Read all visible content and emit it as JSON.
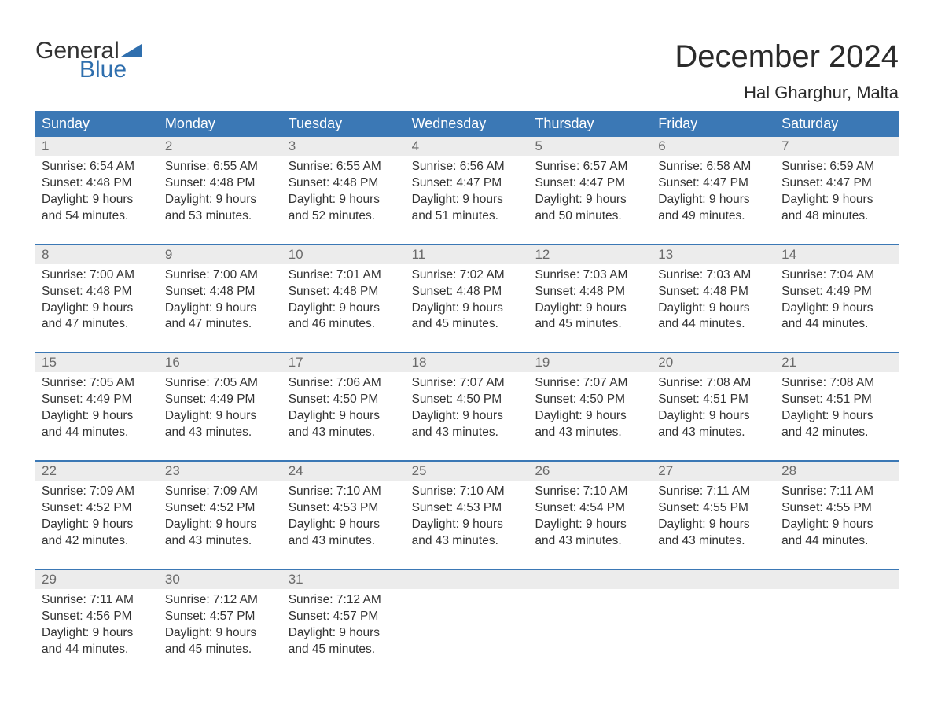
{
  "logo": {
    "text_general": "General",
    "text_blue": "Blue",
    "flag_color": "#2f6fae"
  },
  "title": "December 2024",
  "location": "Hal Gharghur, Malta",
  "colors": {
    "header_bg": "#3b78b5",
    "header_text": "#ffffff",
    "daynum_bg": "#ececec",
    "daynum_text": "#6a6a6a",
    "body_text": "#333333",
    "week_border": "#3b78b5",
    "logo_blue": "#2f6fae",
    "logo_gray": "#333333",
    "page_bg": "#ffffff"
  },
  "typography": {
    "title_fontsize": 40,
    "location_fontsize": 22,
    "dayhead_fontsize": 18,
    "daynum_fontsize": 17,
    "body_fontsize": 15.5,
    "font_family": "Arial"
  },
  "calendar": {
    "type": "table",
    "columns": [
      "Sunday",
      "Monday",
      "Tuesday",
      "Wednesday",
      "Thursday",
      "Friday",
      "Saturday"
    ],
    "weeks": [
      [
        {
          "day": "1",
          "sunrise": "6:54 AM",
          "sunset": "4:48 PM",
          "daylight_line1": "Daylight: 9 hours",
          "daylight_line2": "and 54 minutes."
        },
        {
          "day": "2",
          "sunrise": "6:55 AM",
          "sunset": "4:48 PM",
          "daylight_line1": "Daylight: 9 hours",
          "daylight_line2": "and 53 minutes."
        },
        {
          "day": "3",
          "sunrise": "6:55 AM",
          "sunset": "4:48 PM",
          "daylight_line1": "Daylight: 9 hours",
          "daylight_line2": "and 52 minutes."
        },
        {
          "day": "4",
          "sunrise": "6:56 AM",
          "sunset": "4:47 PM",
          "daylight_line1": "Daylight: 9 hours",
          "daylight_line2": "and 51 minutes."
        },
        {
          "day": "5",
          "sunrise": "6:57 AM",
          "sunset": "4:47 PM",
          "daylight_line1": "Daylight: 9 hours",
          "daylight_line2": "and 50 minutes."
        },
        {
          "day": "6",
          "sunrise": "6:58 AM",
          "sunset": "4:47 PM",
          "daylight_line1": "Daylight: 9 hours",
          "daylight_line2": "and 49 minutes."
        },
        {
          "day": "7",
          "sunrise": "6:59 AM",
          "sunset": "4:47 PM",
          "daylight_line1": "Daylight: 9 hours",
          "daylight_line2": "and 48 minutes."
        }
      ],
      [
        {
          "day": "8",
          "sunrise": "7:00 AM",
          "sunset": "4:48 PM",
          "daylight_line1": "Daylight: 9 hours",
          "daylight_line2": "and 47 minutes."
        },
        {
          "day": "9",
          "sunrise": "7:00 AM",
          "sunset": "4:48 PM",
          "daylight_line1": "Daylight: 9 hours",
          "daylight_line2": "and 47 minutes."
        },
        {
          "day": "10",
          "sunrise": "7:01 AM",
          "sunset": "4:48 PM",
          "daylight_line1": "Daylight: 9 hours",
          "daylight_line2": "and 46 minutes."
        },
        {
          "day": "11",
          "sunrise": "7:02 AM",
          "sunset": "4:48 PM",
          "daylight_line1": "Daylight: 9 hours",
          "daylight_line2": "and 45 minutes."
        },
        {
          "day": "12",
          "sunrise": "7:03 AM",
          "sunset": "4:48 PM",
          "daylight_line1": "Daylight: 9 hours",
          "daylight_line2": "and 45 minutes."
        },
        {
          "day": "13",
          "sunrise": "7:03 AM",
          "sunset": "4:48 PM",
          "daylight_line1": "Daylight: 9 hours",
          "daylight_line2": "and 44 minutes."
        },
        {
          "day": "14",
          "sunrise": "7:04 AM",
          "sunset": "4:49 PM",
          "daylight_line1": "Daylight: 9 hours",
          "daylight_line2": "and 44 minutes."
        }
      ],
      [
        {
          "day": "15",
          "sunrise": "7:05 AM",
          "sunset": "4:49 PM",
          "daylight_line1": "Daylight: 9 hours",
          "daylight_line2": "and 44 minutes."
        },
        {
          "day": "16",
          "sunrise": "7:05 AM",
          "sunset": "4:49 PM",
          "daylight_line1": "Daylight: 9 hours",
          "daylight_line2": "and 43 minutes."
        },
        {
          "day": "17",
          "sunrise": "7:06 AM",
          "sunset": "4:50 PM",
          "daylight_line1": "Daylight: 9 hours",
          "daylight_line2": "and 43 minutes."
        },
        {
          "day": "18",
          "sunrise": "7:07 AM",
          "sunset": "4:50 PM",
          "daylight_line1": "Daylight: 9 hours",
          "daylight_line2": "and 43 minutes."
        },
        {
          "day": "19",
          "sunrise": "7:07 AM",
          "sunset": "4:50 PM",
          "daylight_line1": "Daylight: 9 hours",
          "daylight_line2": "and 43 minutes."
        },
        {
          "day": "20",
          "sunrise": "7:08 AM",
          "sunset": "4:51 PM",
          "daylight_line1": "Daylight: 9 hours",
          "daylight_line2": "and 43 minutes."
        },
        {
          "day": "21",
          "sunrise": "7:08 AM",
          "sunset": "4:51 PM",
          "daylight_line1": "Daylight: 9 hours",
          "daylight_line2": "and 42 minutes."
        }
      ],
      [
        {
          "day": "22",
          "sunrise": "7:09 AM",
          "sunset": "4:52 PM",
          "daylight_line1": "Daylight: 9 hours",
          "daylight_line2": "and 42 minutes."
        },
        {
          "day": "23",
          "sunrise": "7:09 AM",
          "sunset": "4:52 PM",
          "daylight_line1": "Daylight: 9 hours",
          "daylight_line2": "and 43 minutes."
        },
        {
          "day": "24",
          "sunrise": "7:10 AM",
          "sunset": "4:53 PM",
          "daylight_line1": "Daylight: 9 hours",
          "daylight_line2": "and 43 minutes."
        },
        {
          "day": "25",
          "sunrise": "7:10 AM",
          "sunset": "4:53 PM",
          "daylight_line1": "Daylight: 9 hours",
          "daylight_line2": "and 43 minutes."
        },
        {
          "day": "26",
          "sunrise": "7:10 AM",
          "sunset": "4:54 PM",
          "daylight_line1": "Daylight: 9 hours",
          "daylight_line2": "and 43 minutes."
        },
        {
          "day": "27",
          "sunrise": "7:11 AM",
          "sunset": "4:55 PM",
          "daylight_line1": "Daylight: 9 hours",
          "daylight_line2": "and 43 minutes."
        },
        {
          "day": "28",
          "sunrise": "7:11 AM",
          "sunset": "4:55 PM",
          "daylight_line1": "Daylight: 9 hours",
          "daylight_line2": "and 44 minutes."
        }
      ],
      [
        {
          "day": "29",
          "sunrise": "7:11 AM",
          "sunset": "4:56 PM",
          "daylight_line1": "Daylight: 9 hours",
          "daylight_line2": "and 44 minutes."
        },
        {
          "day": "30",
          "sunrise": "7:12 AM",
          "sunset": "4:57 PM",
          "daylight_line1": "Daylight: 9 hours",
          "daylight_line2": "and 45 minutes."
        },
        {
          "day": "31",
          "sunrise": "7:12 AM",
          "sunset": "4:57 PM",
          "daylight_line1": "Daylight: 9 hours",
          "daylight_line2": "and 45 minutes."
        },
        {
          "empty": true
        },
        {
          "empty": true
        },
        {
          "empty": true
        },
        {
          "empty": true
        }
      ]
    ],
    "labels": {
      "sunrise_prefix": "Sunrise: ",
      "sunset_prefix": "Sunset: "
    }
  }
}
